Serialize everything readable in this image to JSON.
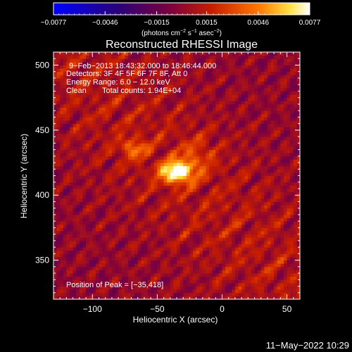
{
  "chart_data": {
    "type": "heatmap",
    "title": "Reconstructed RHESSI Image",
    "xlabel": "Heliocentric X (arcsec)",
    "ylabel": "Heliocentric Y (arcsec)",
    "xlim": [
      -130,
      60
    ],
    "ylim": [
      320,
      510
    ],
    "xticks": [
      -100,
      -50,
      0,
      50
    ],
    "yticks": [
      350,
      400,
      450,
      500
    ],
    "xtick_labels": [
      "−100",
      "−50",
      "0",
      "50"
    ],
    "ytick_labels": [
      "350",
      "400",
      "450",
      "500"
    ],
    "colorbar": {
      "range": [
        -0.0077,
        0.0077
      ],
      "tick_labels": [
        "−0.0077",
        "−0.0046",
        "−0.0015",
        "0.0015",
        "0.0046",
        "0.0077"
      ],
      "unit_parts": [
        "(photons cm",
        "−2",
        " s",
        "−1",
        " asec",
        "−2",
        ")"
      ],
      "colors": [
        "#0000ff",
        "#2a007a",
        "#7a0040",
        "#c81e00",
        "#ff7800",
        "#ffe040",
        "#ffffff"
      ]
    },
    "annotations": [
      "9−Feb−2013 18:43:32.000 to 18:46:44.000",
      "Detectors: 3F 4F 5F 6F 7F 8F, Att 0",
      "Energy Range: 6.0 − 12.0 keV",
      "Clean",
      "Total counts: 1.94E+04"
    ],
    "peak_label": "Position of Peak = [−35,418]",
    "peak": [
      -35,
      418
    ],
    "sources": [
      {
        "x": -35,
        "y": 418,
        "sx": 9,
        "sy": 6,
        "amp": 0.0077
      },
      {
        "x": -68,
        "y": 436,
        "sx": 7,
        "sy": 5,
        "amp": 0.0035
      },
      {
        "x": -20,
        "y": 430,
        "sx": 10,
        "sy": 10,
        "amp": 0.002
      }
    ]
  },
  "timestamp": "11−May−2022 10:29"
}
